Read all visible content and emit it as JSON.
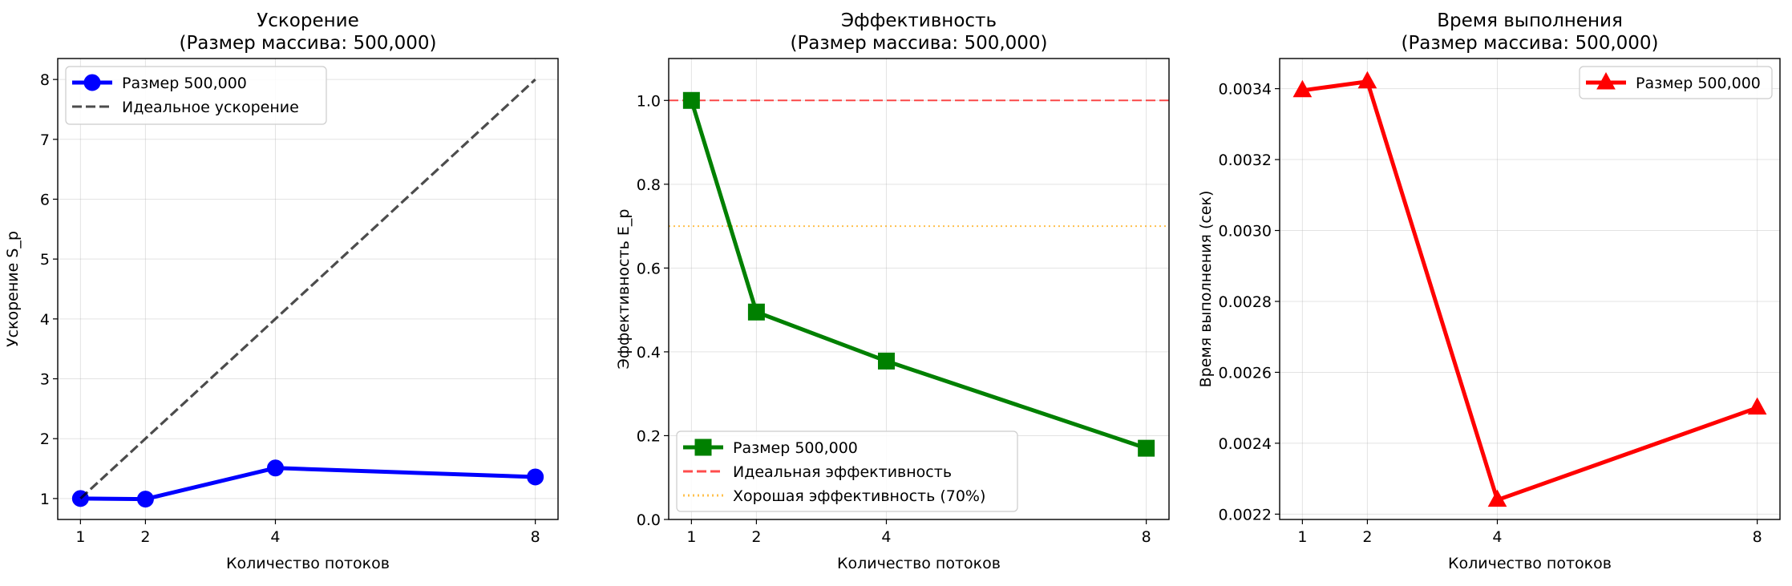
{
  "chart_data": [
    {
      "type": "line",
      "title": "Ускорение\n(Размер массива: 500,000)",
      "xlabel": "Количество потоков",
      "ylabel": "Ускорение S_p",
      "xlim": [
        0.65,
        8.35
      ],
      "ylim": [
        0.65,
        8.35
      ],
      "xticks": [
        1,
        2,
        4,
        8
      ],
      "yticks": [
        1,
        2,
        3,
        4,
        5,
        6,
        7,
        8
      ],
      "grid": true,
      "legend_position": "top-left",
      "series": [
        {
          "name": "Размер 500,000",
          "x": [
            1,
            2,
            4,
            8
          ],
          "y": [
            1.0,
            0.99,
            1.51,
            1.36
          ],
          "color": "#0000ff",
          "marker": "circle",
          "style": "solid"
        },
        {
          "name": "Идеальное ускорение",
          "x": [
            1,
            8
          ],
          "y": [
            1,
            8
          ],
          "color": "#000000",
          "opacity": 0.7,
          "style": "dashed"
        }
      ]
    },
    {
      "type": "line",
      "title": "Эффективность\n(Размер массива: 500,000)",
      "xlabel": "Количество потоков",
      "ylabel": "Эффективность E_p",
      "xlim": [
        0.65,
        8.35
      ],
      "ylim": [
        0,
        1.1
      ],
      "xticks": [
        1,
        2,
        4,
        8
      ],
      "yticks": [
        "0.0",
        "0.2",
        "0.4",
        "0.6",
        "0.8",
        "1.0"
      ],
      "grid": true,
      "legend_position": "bottom-left",
      "series": [
        {
          "name": "Размер 500,000",
          "x": [
            1,
            2,
            4,
            8
          ],
          "y": [
            1.0,
            0.495,
            0.378,
            0.17
          ],
          "color": "#008000",
          "marker": "square",
          "style": "solid"
        }
      ],
      "hlines": [
        {
          "name": "Идеальная эффективность",
          "y": 1.0,
          "color": "#ff0000",
          "opacity": 0.7,
          "style": "dashed"
        },
        {
          "name": "Хорошая эффективность (70%)",
          "y": 0.7,
          "color": "#ffa500",
          "opacity": 0.7,
          "style": "dotted"
        }
      ]
    },
    {
      "type": "line",
      "title": "Время выполнения\n(Размер массива: 500,000)",
      "xlabel": "Количество потоков",
      "ylabel": "Время выполнения (сек)",
      "xlim": [
        0.65,
        8.35
      ],
      "ylim": [
        0.002185,
        0.003485
      ],
      "xticks": [
        1,
        2,
        4,
        8
      ],
      "yticks": [
        "0.0022",
        "0.0024",
        "0.0026",
        "0.0028",
        "0.0030",
        "0.0032",
        "0.0034"
      ],
      "grid": true,
      "legend_position": "top-right",
      "series": [
        {
          "name": "Размер 500,000",
          "x": [
            1,
            2,
            4,
            8
          ],
          "y": [
            0.003395,
            0.00342,
            0.00224,
            0.0025
          ],
          "color": "#ff0000",
          "marker": "triangle",
          "style": "solid"
        }
      ]
    }
  ]
}
